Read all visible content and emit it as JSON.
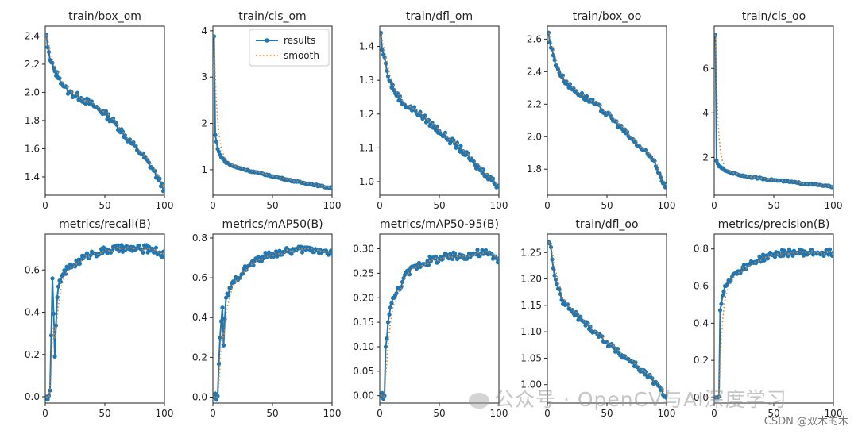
{
  "watermark": {
    "main": "公众号 · OpenCV与AI深度学习",
    "credit": "CSDN @双木的木"
  },
  "legend": {
    "results": "results",
    "smooth": "smooth"
  },
  "colors": {
    "results": "#1f77b4",
    "smooth": "#ff7f0e"
  },
  "chart_data": [
    {
      "type": "line",
      "title": "train/box_om",
      "xlim": [
        0,
        100
      ],
      "xticks": [
        0,
        50,
        100
      ],
      "ylim": [
        1.27,
        2.47
      ],
      "yticks": [
        1.4,
        1.6,
        1.8,
        2.0,
        2.2,
        2.4
      ],
      "ytick_labels": [
        "1.4",
        "1.6",
        "1.8",
        "2.0",
        "2.2",
        "2.4"
      ],
      "curve": [
        [
          1,
          2.41
        ],
        [
          2,
          2.32
        ],
        [
          4,
          2.23
        ],
        [
          8,
          2.15
        ],
        [
          12,
          2.1
        ],
        [
          16,
          2.04
        ],
        [
          20,
          2.0
        ],
        [
          30,
          1.96
        ],
        [
          40,
          1.91
        ],
        [
          50,
          1.85
        ],
        [
          60,
          1.77
        ],
        [
          70,
          1.66
        ],
        [
          80,
          1.57
        ],
        [
          90,
          1.46
        ],
        [
          95,
          1.38
        ],
        [
          100,
          1.31
        ]
      ],
      "noise": 0.025
    },
    {
      "type": "line",
      "title": "train/cls_om",
      "legend_position": "top-right",
      "xlim": [
        0,
        100
      ],
      "xticks": [
        0,
        50,
        100
      ],
      "ylim": [
        0.45,
        4.1
      ],
      "yticks": [
        1,
        2,
        3,
        4
      ],
      "ytick_labels": [
        "1",
        "2",
        "3",
        "4"
      ],
      "curve": [
        [
          1,
          3.88
        ],
        [
          2,
          1.75
        ],
        [
          4,
          1.45
        ],
        [
          6,
          1.32
        ],
        [
          10,
          1.18
        ],
        [
          15,
          1.1
        ],
        [
          20,
          1.05
        ],
        [
          30,
          0.98
        ],
        [
          40,
          0.92
        ],
        [
          50,
          0.86
        ],
        [
          60,
          0.8
        ],
        [
          70,
          0.74
        ],
        [
          80,
          0.7
        ],
        [
          90,
          0.65
        ],
        [
          100,
          0.6
        ]
      ],
      "noise": 0.015
    },
    {
      "type": "line",
      "title": "train/dfl_om",
      "xlim": [
        0,
        100
      ],
      "xticks": [
        0,
        50,
        100
      ],
      "ylim": [
        0.96,
        1.46
      ],
      "yticks": [
        1.0,
        1.1,
        1.2,
        1.3,
        1.4
      ],
      "ytick_labels": [
        "1.0",
        "1.1",
        "1.2",
        "1.3",
        "1.4"
      ],
      "curve": [
        [
          1,
          1.44
        ],
        [
          2,
          1.39
        ],
        [
          5,
          1.35
        ],
        [
          8,
          1.3
        ],
        [
          12,
          1.27
        ],
        [
          20,
          1.23
        ],
        [
          30,
          1.21
        ],
        [
          40,
          1.18
        ],
        [
          50,
          1.15
        ],
        [
          60,
          1.12
        ],
        [
          70,
          1.09
        ],
        [
          80,
          1.05
        ],
        [
          90,
          1.02
        ],
        [
          100,
          0.985
        ]
      ],
      "noise": 0.01
    },
    {
      "type": "line",
      "title": "train/box_oo",
      "xlim": [
        0,
        100
      ],
      "xticks": [
        0,
        50,
        100
      ],
      "ylim": [
        1.64,
        2.68
      ],
      "yticks": [
        1.8,
        2.0,
        2.2,
        2.4,
        2.6
      ],
      "ytick_labels": [
        "1.8",
        "2.0",
        "2.2",
        "2.4",
        "2.6"
      ],
      "curve": [
        [
          1,
          2.64
        ],
        [
          2,
          2.58
        ],
        [
          5,
          2.5
        ],
        [
          8,
          2.43
        ],
        [
          12,
          2.37
        ],
        [
          20,
          2.3
        ],
        [
          30,
          2.25
        ],
        [
          40,
          2.2
        ],
        [
          50,
          2.14
        ],
        [
          60,
          2.07
        ],
        [
          70,
          1.99
        ],
        [
          80,
          1.92
        ],
        [
          90,
          1.85
        ],
        [
          95,
          1.75
        ],
        [
          100,
          1.69
        ]
      ],
      "noise": 0.018
    },
    {
      "type": "line",
      "title": "train/cls_oo",
      "xlim": [
        0,
        100
      ],
      "xticks": [
        0,
        50,
        100
      ],
      "ylim": [
        0.3,
        7.9
      ],
      "yticks": [
        2,
        4,
        6
      ],
      "ytick_labels": [
        "2",
        "4",
        "6"
      ],
      "curve": [
        [
          1,
          7.5
        ],
        [
          2,
          1.85
        ],
        [
          4,
          1.6
        ],
        [
          8,
          1.45
        ],
        [
          12,
          1.35
        ],
        [
          20,
          1.22
        ],
        [
          30,
          1.12
        ],
        [
          40,
          1.05
        ],
        [
          50,
          0.98
        ],
        [
          60,
          0.92
        ],
        [
          70,
          0.86
        ],
        [
          80,
          0.8
        ],
        [
          90,
          0.74
        ],
        [
          100,
          0.68
        ]
      ],
      "noise": 0.03
    },
    {
      "type": "line",
      "title": "metrics/recall(B)",
      "xlim": [
        0,
        100
      ],
      "xticks": [
        0,
        50,
        100
      ],
      "ylim": [
        -0.03,
        0.77
      ],
      "yticks": [
        0.0,
        0.2,
        0.4,
        0.6
      ],
      "ytick_labels": [
        "0.0",
        "0.2",
        "0.4",
        "0.6"
      ],
      "curve": [
        [
          1,
          0.0
        ],
        [
          3,
          0.005
        ],
        [
          4,
          0.03
        ],
        [
          5,
          0.29
        ],
        [
          6,
          0.56
        ],
        [
          8,
          0.19
        ],
        [
          10,
          0.47
        ],
        [
          12,
          0.55
        ],
        [
          15,
          0.58
        ],
        [
          20,
          0.61
        ],
        [
          30,
          0.65
        ],
        [
          40,
          0.68
        ],
        [
          50,
          0.69
        ],
        [
          60,
          0.7
        ],
        [
          70,
          0.7
        ],
        [
          80,
          0.7
        ],
        [
          90,
          0.7
        ],
        [
          100,
          0.67
        ]
      ],
      "noise": 0.018
    },
    {
      "type": "line",
      "title": "metrics/mAP50(B)",
      "xlim": [
        0,
        100
      ],
      "xticks": [
        0,
        50,
        100
      ],
      "ylim": [
        -0.03,
        0.82
      ],
      "yticks": [
        0.0,
        0.2,
        0.4,
        0.6,
        0.8
      ],
      "ytick_labels": [
        "0.0",
        "0.2",
        "0.4",
        "0.6",
        "0.8"
      ],
      "curve": [
        [
          1,
          0.0
        ],
        [
          4,
          0.005
        ],
        [
          6,
          0.3
        ],
        [
          8,
          0.45
        ],
        [
          9,
          0.26
        ],
        [
          11,
          0.5
        ],
        [
          15,
          0.55
        ],
        [
          20,
          0.6
        ],
        [
          30,
          0.66
        ],
        [
          40,
          0.7
        ],
        [
          50,
          0.72
        ],
        [
          60,
          0.73
        ],
        [
          70,
          0.74
        ],
        [
          80,
          0.745
        ],
        [
          90,
          0.74
        ],
        [
          100,
          0.72
        ]
      ],
      "noise": 0.018
    },
    {
      "type": "line",
      "title": "metrics/mAP50-95(B)",
      "xlim": [
        0,
        100
      ],
      "xticks": [
        0,
        50,
        100
      ],
      "ylim": [
        -0.015,
        0.33
      ],
      "yticks": [
        0.0,
        0.05,
        0.1,
        0.15,
        0.2,
        0.25,
        0.3
      ],
      "ytick_labels": [
        "0.00",
        "0.05",
        "0.10",
        "0.15",
        "0.20",
        "0.25",
        "0.30"
      ],
      "curve": [
        [
          1,
          0.0
        ],
        [
          4,
          0.0
        ],
        [
          5,
          0.1
        ],
        [
          7,
          0.15
        ],
        [
          9,
          0.18
        ],
        [
          12,
          0.2
        ],
        [
          16,
          0.22
        ],
        [
          20,
          0.24
        ],
        [
          30,
          0.265
        ],
        [
          40,
          0.275
        ],
        [
          50,
          0.28
        ],
        [
          60,
          0.283
        ],
        [
          70,
          0.286
        ],
        [
          80,
          0.29
        ],
        [
          90,
          0.29
        ],
        [
          100,
          0.28
        ]
      ],
      "noise": 0.009
    },
    {
      "type": "line",
      "title": "train/dfl_oo",
      "xlim": [
        0,
        100
      ],
      "xticks": [
        0,
        50,
        100
      ],
      "ylim": [
        0.965,
        1.285
      ],
      "yticks": [
        1.0,
        1.05,
        1.1,
        1.15,
        1.2,
        1.25
      ],
      "ytick_labels": [
        "1.00",
        "1.05",
        "1.10",
        "1.15",
        "1.20",
        "1.25"
      ],
      "curve": [
        [
          1,
          1.27
        ],
        [
          3,
          1.26
        ],
        [
          5,
          1.22
        ],
        [
          8,
          1.19
        ],
        [
          12,
          1.16
        ],
        [
          20,
          1.14
        ],
        [
          30,
          1.12
        ],
        [
          40,
          1.1
        ],
        [
          50,
          1.08
        ],
        [
          60,
          1.06
        ],
        [
          70,
          1.045
        ],
        [
          80,
          1.025
        ],
        [
          90,
          1.005
        ],
        [
          95,
          0.99
        ],
        [
          100,
          0.975
        ]
      ],
      "noise": 0.006
    },
    {
      "type": "line",
      "title": "metrics/precision(B)",
      "xlim": [
        0,
        100
      ],
      "xticks": [
        0,
        50,
        100
      ],
      "ylim": [
        -0.03,
        0.88
      ],
      "yticks": [
        0.0,
        0.2,
        0.4,
        0.6,
        0.8
      ],
      "ytick_labels": [
        "0.0",
        "0.2",
        "0.4",
        "0.6",
        "0.8"
      ],
      "curve": [
        [
          1,
          0.0
        ],
        [
          3,
          0.0
        ],
        [
          4,
          0.005
        ],
        [
          5,
          0.47
        ],
        [
          7,
          0.55
        ],
        [
          9,
          0.6
        ],
        [
          12,
          0.63
        ],
        [
          15,
          0.65
        ],
        [
          20,
          0.68
        ],
        [
          30,
          0.72
        ],
        [
          40,
          0.75
        ],
        [
          50,
          0.77
        ],
        [
          60,
          0.78
        ],
        [
          70,
          0.78
        ],
        [
          80,
          0.78
        ],
        [
          90,
          0.78
        ],
        [
          100,
          0.78
        ]
      ],
      "noise": 0.018
    }
  ]
}
